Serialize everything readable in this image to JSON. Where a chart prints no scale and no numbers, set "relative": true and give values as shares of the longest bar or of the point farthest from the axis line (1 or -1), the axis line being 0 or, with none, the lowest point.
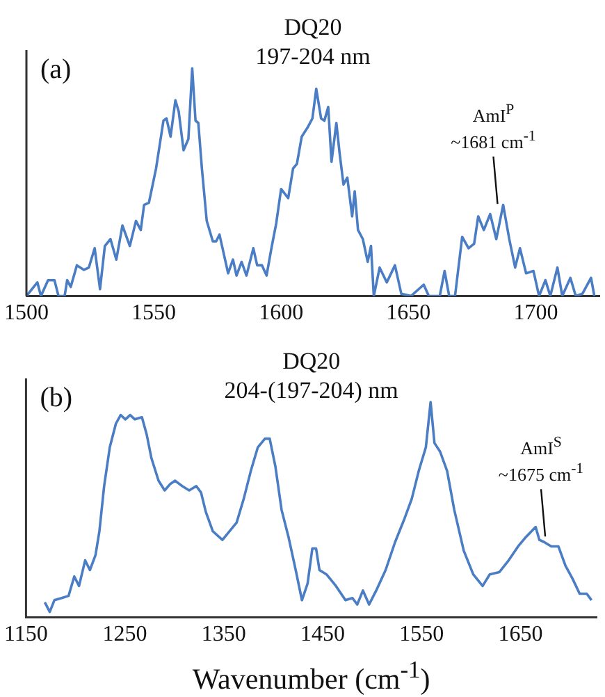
{
  "chart_data": [
    {
      "type": "line",
      "title": "DQ20",
      "subtitle": "197-204 nm",
      "relative": true,
      "tick_labels": "x",
      "marker": "none",
      "color": "#4a7dc3",
      "annotations": [
        "(a)",
        {
          "text": "AmI$^{P}$ ~1681 cm$^{-1}$",
          "x": 1685,
          "y": 0.38
        }
      ],
      "xlim": [
        1500,
        1725
      ],
      "xticks": [
        1500,
        1550,
        1600,
        1650,
        1700
      ],
      "x": [
        1500,
        1504.3,
        1505.7,
        1508.5,
        1511,
        1512.6,
        1515,
        1516,
        1517.4,
        1519.8,
        1522.6,
        1524.5,
        1526.8,
        1528.9,
        1530.8,
        1533,
        1535.3,
        1537.7,
        1540.6,
        1543,
        1544.9,
        1546.2,
        1548.1,
        1550.9,
        1553.8,
        1555,
        1556.6,
        1558.5,
        1559.8,
        1561.7,
        1563.6,
        1565.1,
        1566.4,
        1567.5,
        1568.9,
        1570.8,
        1573.2,
        1574.5,
        1575.8,
        1577.4,
        1579.2,
        1581.1,
        1582.5,
        1584.5,
        1586.4,
        1589.1,
        1590.6,
        1592.5,
        1594.3,
        1596.2,
        1598.1,
        1600,
        1602.8,
        1604.7,
        1606.2,
        1608.1,
        1610.4,
        1612.3,
        1613.8,
        1615.7,
        1617,
        1618.5,
        1619.8,
        1621.7,
        1623,
        1624.5,
        1626,
        1627.9,
        1628.9,
        1630.2,
        1632.1,
        1634,
        1635.3,
        1636.4,
        1638.7,
        1641.5,
        1644.7,
        1647.2,
        1651,
        1656,
        1658,
        1662.3,
        1664.2,
        1666,
        1668.3,
        1671.1,
        1673.6,
        1675.8,
        1677.4,
        1679.6,
        1682.1,
        1684.5,
        1687.2,
        1689.6,
        1691.9,
        1693.8,
        1696.2,
        1699.1,
        1701.3,
        1703.8,
        1705.7,
        1708.5,
        1710.4,
        1713.6,
        1715.7,
        1718.3,
        1721.7,
        1723
      ],
      "values": [
        0,
        0.06,
        0,
        0.07,
        0.07,
        0,
        0,
        0.07,
        0.04,
        0.135,
        0.115,
        0.125,
        0.21,
        0.03,
        0.22,
        0.25,
        0.16,
        0.31,
        0.22,
        0.33,
        0.29,
        0.4,
        0.41,
        0.56,
        0.77,
        0.78,
        0.7,
        0.86,
        0.81,
        0.64,
        0.69,
        1,
        0.77,
        0.76,
        0.56,
        0.33,
        0.24,
        0.24,
        0.27,
        0.19,
        0.1,
        0.16,
        0.09,
        0.15,
        0.09,
        0.21,
        0.135,
        0.135,
        0.09,
        0.21,
        0.32,
        0.47,
        0.43,
        0.56,
        0.58,
        0.7,
        0.74,
        0.78,
        0.91,
        0.78,
        0.77,
        0.83,
        0.59,
        0.76,
        0.625,
        0.49,
        0.52,
        0.35,
        0.46,
        0.29,
        0.25,
        0.15,
        0.22,
        0,
        0.125,
        0.06,
        0.135,
        0.01,
        0,
        0.05,
        0,
        0,
        0.11,
        0,
        0,
        0.26,
        0.21,
        0.23,
        0.35,
        0.29,
        0.36,
        0.25,
        0.4,
        0.25,
        0.125,
        0.21,
        0.1,
        0.11,
        0,
        0.07,
        0,
        0.125,
        0,
        0.08,
        0,
        0.01,
        0.08,
        0
      ]
    },
    {
      "type": "line",
      "title": "DQ20",
      "subtitle": "204-(197-204) nm",
      "xlabel": "Wavenumber (cm$^{-1}$)",
      "relative": true,
      "tick_labels": "x",
      "marker": "none",
      "color": "#4a7dc3",
      "annotations": [
        "(b)",
        {
          "text": "AmI$^{S}$ ~1675 cm$^{-1}$",
          "x": 1675,
          "y": 0.35
        }
      ],
      "xlim": [
        1150,
        1727
      ],
      "xticks": [
        1150,
        1250,
        1350,
        1450,
        1550,
        1650
      ],
      "x": [
        1169,
        1174,
        1178.7,
        1186,
        1193,
        1198.8,
        1203.6,
        1209.8,
        1214.6,
        1220.3,
        1224.2,
        1229,
        1234.7,
        1240.9,
        1245.7,
        1250.5,
        1255.3,
        1260,
        1267.2,
        1272,
        1276.8,
        1284,
        1290.2,
        1295.9,
        1300.7,
        1307.9,
        1315,
        1322.2,
        1327,
        1331.8,
        1338.9,
        1348.6,
        1355.7,
        1362.9,
        1370.1,
        1377.3,
        1384.4,
        1391.6,
        1396.4,
        1402.2,
        1408.4,
        1415.6,
        1422.7,
        1429,
        1434.7,
        1439.5,
        1443.3,
        1446.7,
        1453.8,
        1463.4,
        1473,
        1480.1,
        1484.9,
        1490.7,
        1496.9,
        1504.1,
        1513.6,
        1523.2,
        1532.8,
        1540,
        1547.1,
        1554.3,
        1559.1,
        1563,
        1568.7,
        1575.8,
        1583,
        1592.6,
        1602.2,
        1611.7,
        1618.9,
        1628.5,
        1638,
        1647.6,
        1654.8,
        1665.3,
        1669.1,
        1673.9,
        1681.1,
        1688.3,
        1695.5,
        1702.6,
        1709.8,
        1717,
        1721.8
      ],
      "values": [
        0.07,
        0.026,
        0.08,
        0.09,
        0.1,
        0.19,
        0.146,
        0.265,
        0.22,
        0.29,
        0.4,
        0.61,
        0.79,
        0.9,
        0.94,
        0.92,
        0.94,
        0.92,
        0.93,
        0.85,
        0.74,
        0.635,
        0.59,
        0.62,
        0.635,
        0.61,
        0.59,
        0.61,
        0.58,
        0.49,
        0.4,
        0.36,
        0.4,
        0.44,
        0.55,
        0.68,
        0.79,
        0.83,
        0.83,
        0.7,
        0.5,
        0.37,
        0.22,
        0.08,
        0.157,
        0.32,
        0.32,
        0.22,
        0.2,
        0.146,
        0.08,
        0.09,
        0.06,
        0.125,
        0.06,
        0.125,
        0.22,
        0.35,
        0.46,
        0.55,
        0.68,
        0.79,
        1,
        0.81,
        0.77,
        0.68,
        0.5,
        0.31,
        0.2,
        0.146,
        0.2,
        0.21,
        0.265,
        0.33,
        0.37,
        0.42,
        0.36,
        0.35,
        0.33,
        0.33,
        0.24,
        0.18,
        0.11,
        0.11,
        0.08
      ]
    }
  ]
}
